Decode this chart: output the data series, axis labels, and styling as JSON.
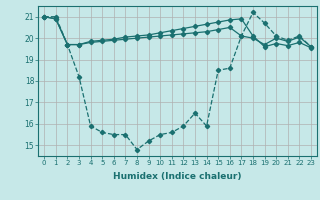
{
  "xlabel": "Humidex (Indice chaleur)",
  "x_ticks": [
    0,
    1,
    2,
    3,
    4,
    5,
    6,
    7,
    8,
    9,
    10,
    11,
    12,
    13,
    14,
    15,
    16,
    17,
    18,
    19,
    20,
    21,
    22,
    23
  ],
  "ylim": [
    14.5,
    21.5
  ],
  "xlim": [
    -0.5,
    23.5
  ],
  "yticks": [
    15,
    16,
    17,
    18,
    19,
    20,
    21
  ],
  "bg_color": "#c6e8e8",
  "line_color": "#1a7070",
  "grid_color": "#b0b0b0",
  "line1": [
    21.0,
    21.0,
    19.7,
    18.2,
    15.9,
    15.6,
    15.5,
    15.5,
    14.8,
    15.2,
    15.5,
    15.6,
    15.9,
    16.5,
    15.9,
    18.5,
    18.6,
    20.1,
    21.2,
    20.7,
    20.1,
    19.9,
    20.1,
    19.6
  ],
  "line2": [
    21.0,
    20.9,
    19.7,
    19.7,
    19.8,
    19.85,
    19.9,
    19.95,
    20.0,
    20.05,
    20.1,
    20.15,
    20.2,
    20.25,
    20.3,
    20.4,
    20.5,
    20.1,
    20.0,
    19.7,
    20.0,
    19.85,
    20.05,
    19.6
  ],
  "line3": [
    21.0,
    20.9,
    19.7,
    19.7,
    19.85,
    19.9,
    19.95,
    20.05,
    20.1,
    20.15,
    20.25,
    20.35,
    20.45,
    20.55,
    20.65,
    20.75,
    20.85,
    20.9,
    20.1,
    19.6,
    19.75,
    19.65,
    19.8,
    19.55
  ]
}
